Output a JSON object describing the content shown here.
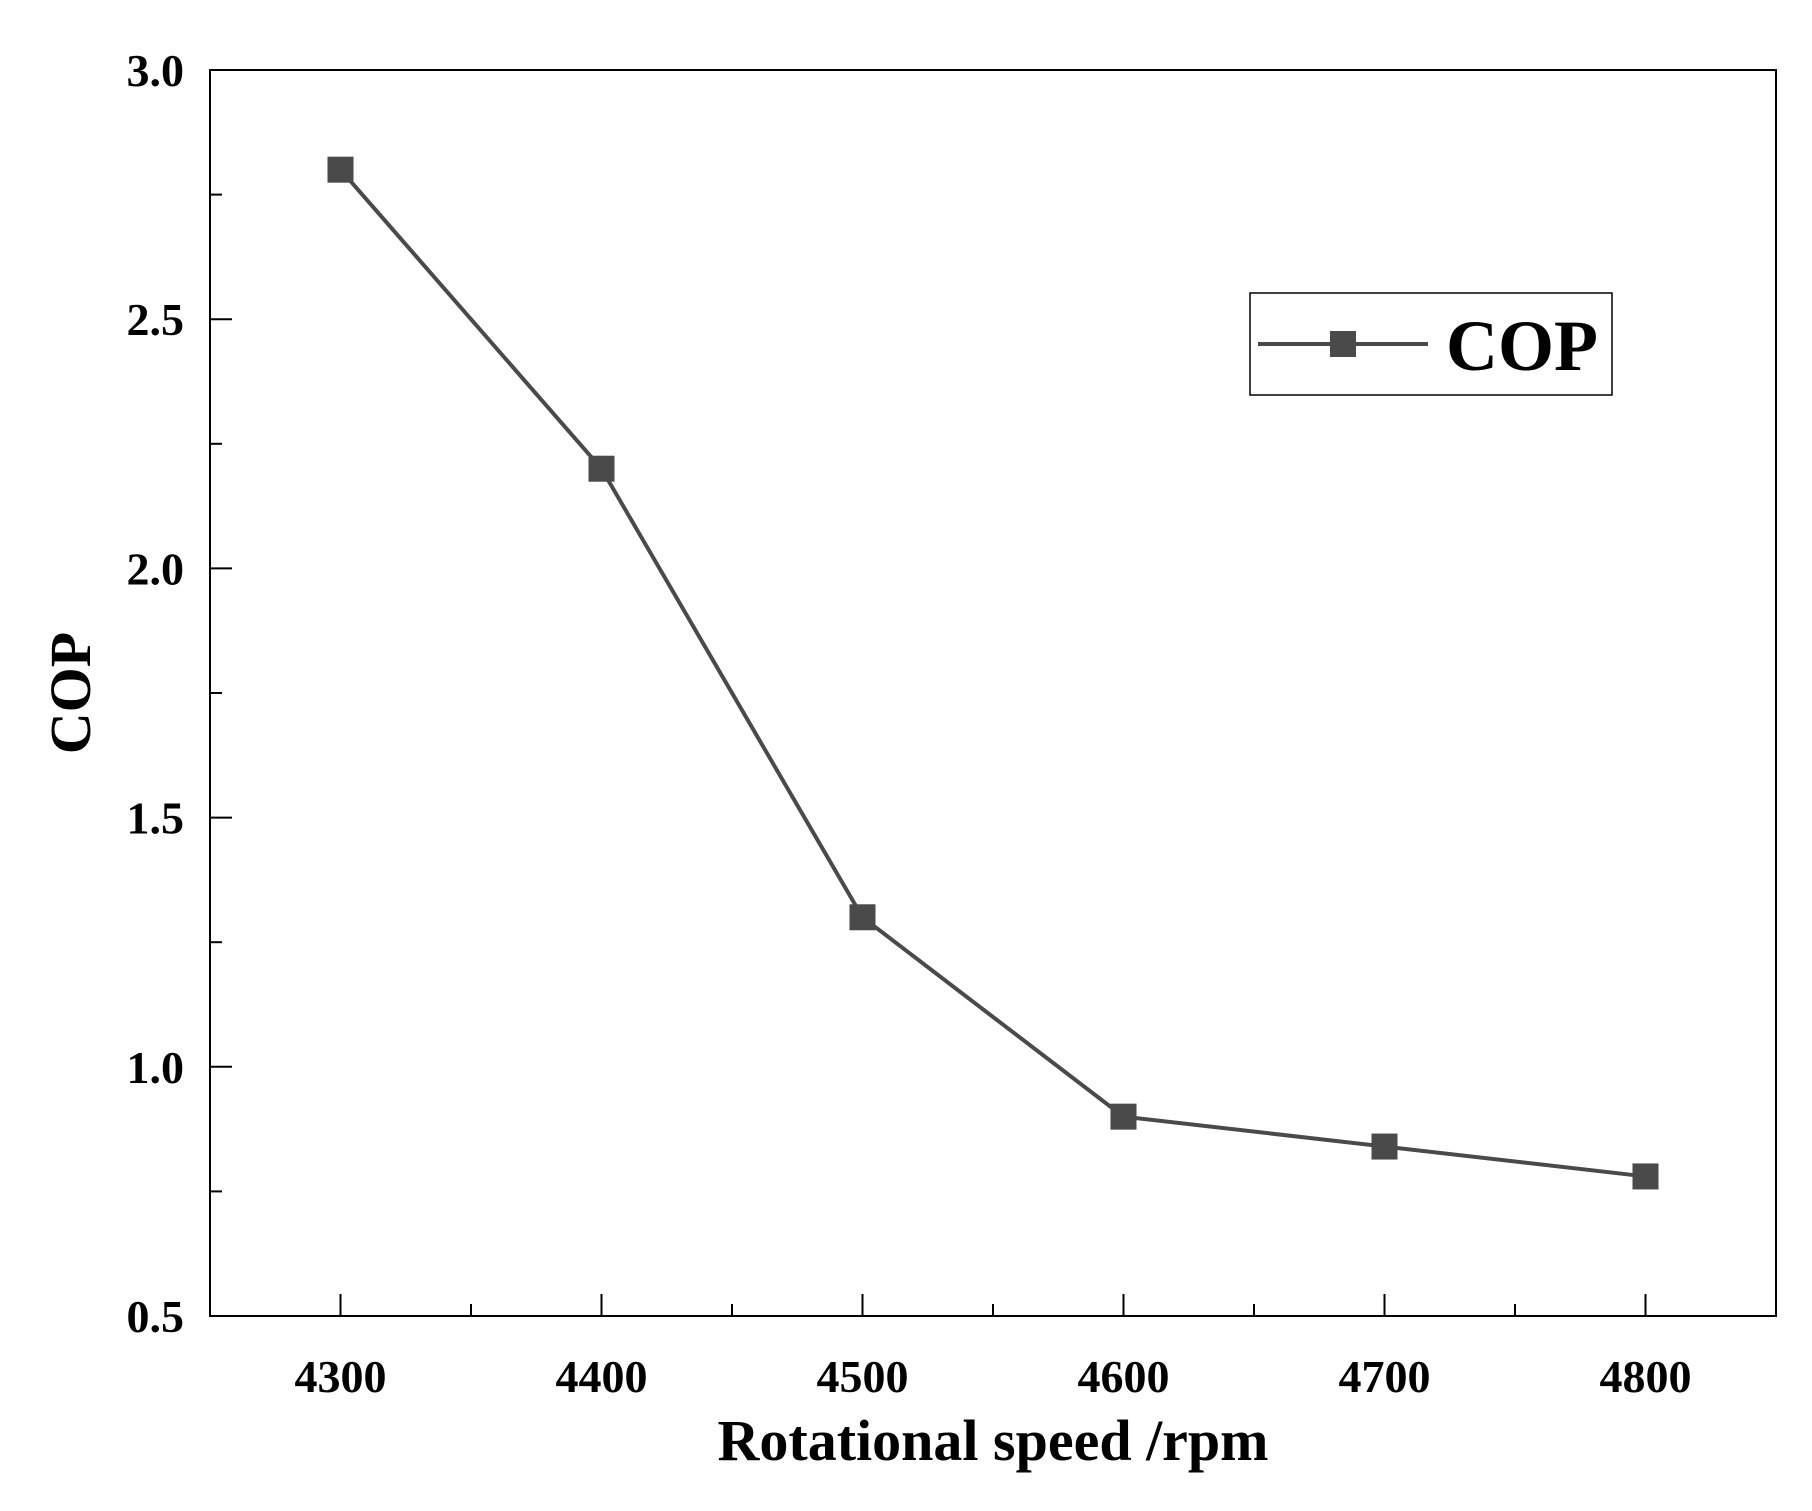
{
  "chart_data": {
    "type": "line",
    "title": "",
    "xlabel": "Rotational speed /rpm",
    "ylabel": "COP",
    "xlim": [
      4250,
      4850
    ],
    "ylim": [
      0.5,
      3.0
    ],
    "x_ticks": [
      4300,
      4400,
      4500,
      4600,
      4700,
      4800
    ],
    "x_minor_ticks": [
      4350,
      4450,
      4550,
      4650,
      4750
    ],
    "y_ticks": [
      0.5,
      1.0,
      1.5,
      2.0,
      2.5,
      3.0
    ],
    "y_tick_labels": [
      "0.5",
      "1.0",
      "1.5",
      "2.0",
      "2.5",
      "3.0"
    ],
    "y_minor_ticks": [
      0.75,
      1.25,
      1.75,
      2.25,
      2.75
    ],
    "x": [
      4300,
      4400,
      4500,
      4600,
      4700,
      4800
    ],
    "series": [
      {
        "name": "COP",
        "values": [
          2.8,
          2.2,
          1.3,
          0.9,
          0.84,
          0.78
        ],
        "color": "#4a4a4a",
        "marker": "square"
      }
    ],
    "legend": {
      "position": "top-right",
      "entries": [
        "COP"
      ]
    },
    "grid": false
  }
}
